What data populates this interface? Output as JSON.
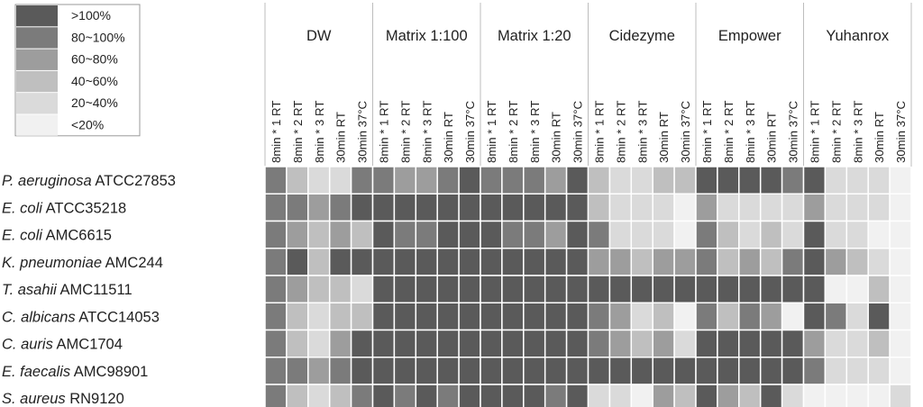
{
  "chart_data": {
    "type": "heatmap",
    "legend": {
      "bins": [
        {
          "label": ">100%",
          "level": 0,
          "color": "#5a5a5a"
        },
        {
          "label": "80~100%",
          "level": 1,
          "color": "#7b7b7b"
        },
        {
          "label": "60~80%",
          "level": 2,
          "color": "#9d9d9d"
        },
        {
          "label": "40~60%",
          "level": 3,
          "color": "#bfbfbf"
        },
        {
          "label": "20~40%",
          "level": 4,
          "color": "#dadada"
        },
        {
          "label": "<20%",
          "level": 5,
          "color": "#f1f1f1"
        }
      ]
    },
    "groups": [
      {
        "name": "DW",
        "columns": [
          "8min * 1 RT",
          "8min * 2 RT",
          "8min * 3 RT",
          "30min RT",
          "30min 37°C"
        ]
      },
      {
        "name": "Matrix 1:100",
        "columns": [
          "8min * 1 RT",
          "8min * 2 RT",
          "8min * 3 RT",
          "30min RT",
          "30min 37°C"
        ]
      },
      {
        "name": "Matrix 1:20",
        "columns": [
          "8min * 1 RT",
          "8min * 2 RT",
          "8min * 3 RT",
          "30min RT",
          "30min 37°C"
        ]
      },
      {
        "name": "Cidezyme",
        "columns": [
          "8min * 1 RT",
          "8min * 2 RT",
          "8min * 3 RT",
          "30min RT",
          "30min 37°C"
        ]
      },
      {
        "name": "Empower",
        "columns": [
          "8min * 1 RT",
          "8min * 2 RT",
          "8min * 3 RT",
          "30min RT",
          "30min 37°C"
        ]
      },
      {
        "name": "Yuhanrox",
        "columns": [
          "8min * 1 RT",
          "8min * 2 RT",
          "8min * 3 RT",
          "30min RT",
          "30min 37°C"
        ]
      }
    ],
    "rows": [
      {
        "species": "P. aeruginosa",
        "strain": "ATCC27853",
        "levels": [
          1,
          3,
          4,
          4,
          1,
          1,
          2,
          2,
          1,
          0,
          1,
          1,
          1,
          2,
          0,
          3,
          4,
          4,
          3,
          3,
          0,
          0,
          0,
          0,
          1,
          0,
          4,
          4,
          4,
          5
        ]
      },
      {
        "species": "E. coli",
        "strain": "ATCC35218",
        "levels": [
          1,
          1,
          2,
          1,
          0,
          0,
          0,
          0,
          0,
          0,
          0,
          0,
          0,
          0,
          0,
          3,
          4,
          4,
          4,
          5,
          2,
          4,
          4,
          4,
          4,
          2,
          4,
          4,
          4,
          5
        ]
      },
      {
        "species": "E. coli",
        "strain": "AMC6615",
        "levels": [
          1,
          2,
          3,
          2,
          3,
          0,
          1,
          1,
          0,
          0,
          0,
          1,
          1,
          2,
          0,
          1,
          4,
          4,
          4,
          5,
          1,
          3,
          4,
          3,
          4,
          0,
          4,
          4,
          5,
          5
        ]
      },
      {
        "species": "K. pneumoniae",
        "strain": "AMC244",
        "levels": [
          1,
          0,
          3,
          0,
          0,
          0,
          0,
          0,
          0,
          0,
          0,
          0,
          0,
          0,
          0,
          2,
          2,
          3,
          2,
          2,
          1,
          3,
          2,
          3,
          1,
          0,
          2,
          3,
          4,
          5
        ]
      },
      {
        "species": "T. asahii",
        "strain": "AMC11511",
        "levels": [
          1,
          2,
          3,
          3,
          4,
          0,
          0,
          0,
          0,
          0,
          0,
          0,
          0,
          0,
          0,
          0,
          0,
          0,
          0,
          0,
          0,
          0,
          0,
          0,
          0,
          0,
          5,
          5,
          3,
          5
        ]
      },
      {
        "species": "C. albicans",
        "strain": "ATCC14053",
        "levels": [
          1,
          3,
          4,
          3,
          3,
          0,
          0,
          0,
          0,
          0,
          0,
          0,
          0,
          0,
          0,
          1,
          2,
          4,
          3,
          5,
          1,
          3,
          1,
          2,
          5,
          0,
          1,
          4,
          0,
          5
        ]
      },
      {
        "species": "C. auris",
        "strain": "AMC1704",
        "levels": [
          1,
          3,
          4,
          2,
          0,
          0,
          0,
          0,
          0,
          0,
          0,
          0,
          0,
          0,
          0,
          1,
          2,
          3,
          2,
          4,
          0,
          0,
          0,
          0,
          0,
          2,
          4,
          4,
          3,
          5
        ]
      },
      {
        "species": "E. faecalis",
        "strain": "AMC98901",
        "levels": [
          1,
          1,
          2,
          1,
          0,
          0,
          0,
          0,
          0,
          0,
          0,
          0,
          0,
          0,
          0,
          0,
          0,
          0,
          0,
          0,
          0,
          0,
          0,
          0,
          0,
          1,
          4,
          4,
          4,
          5
        ]
      },
      {
        "species": "S. aureus",
        "strain": "RN9120",
        "levels": [
          1,
          3,
          4,
          3,
          1,
          0,
          1,
          0,
          1,
          0,
          0,
          0,
          0,
          1,
          0,
          4,
          4,
          5,
          2,
          3,
          0,
          2,
          3,
          0,
          4,
          5,
          5,
          5,
          5,
          4
        ]
      }
    ]
  }
}
